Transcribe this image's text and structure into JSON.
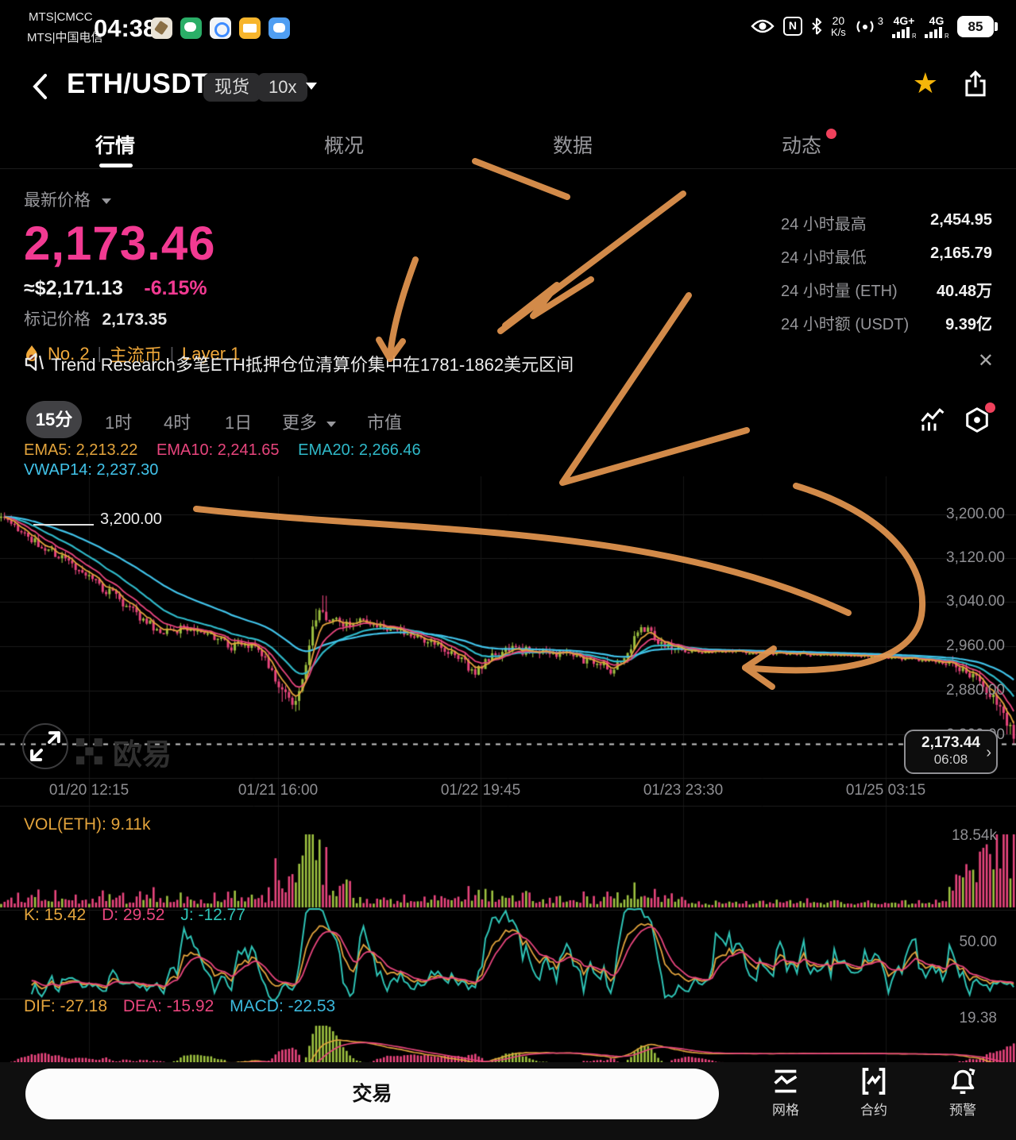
{
  "status_bar": {
    "carrier_line1": "MTS|CMCC",
    "carrier_line2": "MTS|中国电信",
    "time": "04:38",
    "download_speed": "20",
    "speed_unit": "K/s",
    "hotspot_count": "3",
    "network_primary": "4G+",
    "network_secondary": "4G",
    "battery": "85"
  },
  "header": {
    "pair": "ETH/USDT",
    "market_type": "现货",
    "leverage": "10x"
  },
  "nav_tabs": [
    {
      "label": "行情"
    },
    {
      "label": "概况"
    },
    {
      "label": "数据"
    },
    {
      "label": "动态"
    }
  ],
  "price_panel": {
    "label": "最新价格",
    "price": "2,173.46",
    "fiat": "≈$2,171.13",
    "change": "-6.15%",
    "mark_label": "标记价格",
    "mark_price": "2,173.35",
    "rank": "No. 2",
    "sep1": "|",
    "category": "主流币",
    "sep2": "|",
    "layer": "Layer 1"
  },
  "stats": [
    {
      "label": "24 小时最高",
      "value": "2,454.95"
    },
    {
      "label": "24 小时最低",
      "value": "2,165.79"
    },
    {
      "label": "24 小时量 (ETH)",
      "value": "40.48万"
    },
    {
      "label": "24 小时额 (USDT)",
      "value": "9.39亿"
    }
  ],
  "news_bar": {
    "text": "Trend Research多笔ETH抵押仓位清算价集中在1781-1862美元区间",
    "close": "✕"
  },
  "timeframe_bar": {
    "options": [
      {
        "label": "15分"
      },
      {
        "label": "1时"
      },
      {
        "label": "4时"
      },
      {
        "label": "1日"
      }
    ],
    "more": "更多",
    "market_cap": "市值"
  },
  "overlay_indicators": {
    "ema5": "EMA5: 2,213.22",
    "ema10": "EMA10: 2,241.65",
    "ema20": "EMA20: 2,266.46",
    "vwap": "VWAP14: 2,237.30"
  },
  "chart_data": {
    "type": "candlestick",
    "pair": "ETH/USDT",
    "interval": "15分",
    "y_ticks": [
      "3,200.00",
      "3,120.00",
      "3,040.00",
      "2,960.00",
      "2,880.00",
      "2,800.00"
    ],
    "y_values": [
      3200,
      3120,
      3040,
      2960,
      2880,
      2800
    ],
    "x_ticks": [
      "01/20 12:15",
      "01/21 16:00",
      "01/22 19:45",
      "01/23 23:30",
      "01/25 03:15"
    ],
    "first_candle_label": "3,200.00",
    "last_price": "2,173.44",
    "last_price_time": "06:08",
    "price_anchors": [
      [
        0,
        3195
      ],
      [
        0.035,
        3150
      ],
      [
        0.07,
        3110
      ],
      [
        0.094,
        3075
      ],
      [
        0.117,
        3046
      ],
      [
        0.14,
        3010
      ],
      [
        0.156,
        2988
      ],
      [
        0.18,
        2992
      ],
      [
        0.203,
        2986
      ],
      [
        0.227,
        2958
      ],
      [
        0.242,
        2966
      ],
      [
        0.258,
        2948
      ],
      [
        0.275,
        2890
      ],
      [
        0.29,
        2852
      ],
      [
        0.3,
        2920
      ],
      [
        0.308,
        2995
      ],
      [
        0.315,
        3025
      ],
      [
        0.325,
        3008
      ],
      [
        0.34,
        3002
      ],
      [
        0.355,
        3010
      ],
      [
        0.375,
        3000
      ],
      [
        0.39,
        2990
      ],
      [
        0.405,
        2978
      ],
      [
        0.43,
        2963
      ],
      [
        0.45,
        2946
      ],
      [
        0.468,
        2912
      ],
      [
        0.482,
        2938
      ],
      [
        0.5,
        2956
      ],
      [
        0.52,
        2952
      ],
      [
        0.54,
        2950
      ],
      [
        0.56,
        2944
      ],
      [
        0.578,
        2936
      ],
      [
        0.594,
        2928
      ],
      [
        0.603,
        2916
      ],
      [
        0.615,
        2942
      ],
      [
        0.625,
        2972
      ],
      [
        0.633,
        2992
      ],
      [
        0.642,
        2986
      ],
      [
        0.65,
        2970
      ],
      [
        0.665,
        2954
      ],
      [
        0.68,
        2950
      ],
      [
        0.71,
        2952
      ],
      [
        0.75,
        2949
      ],
      [
        0.8,
        2947
      ],
      [
        0.85,
        2944
      ],
      [
        0.88,
        2940
      ],
      [
        0.91,
        2936
      ],
      [
        0.933,
        2930
      ],
      [
        0.953,
        2916
      ],
      [
        0.967,
        2896
      ],
      [
        0.979,
        2868
      ],
      [
        0.99,
        2836
      ],
      [
        1,
        2798
      ]
    ],
    "colors": {
      "up": "#9dc140",
      "down": "#e8457d",
      "ema5": "#e3a43c",
      "ema10": "#e8457d",
      "ema20": "#2fb9c9",
      "vwap": "#41c3ea",
      "grid": "#1b1b1b",
      "price_line": "#c9c9c9"
    },
    "volume": {
      "label": "VOL(ETH): 9.11k",
      "axis_max": "18.54k"
    },
    "kdj": {
      "k": "K: 15.42",
      "d": "D: 29.52",
      "j": "J: -12.77",
      "axis_mid": "50.00"
    },
    "macd": {
      "dif": "DIF: -27.18",
      "dea": "DEA: -15.92",
      "macd": "MACD: -22.53",
      "axis": "19.38"
    }
  },
  "watermark": {
    "brand": "欧易"
  },
  "annotations": {
    "color": "#e2954f"
  },
  "bottom_bar": {
    "trade": "交易",
    "actions": [
      {
        "label": "网格"
      },
      {
        "label": "合约"
      },
      {
        "label": "预警"
      }
    ]
  }
}
